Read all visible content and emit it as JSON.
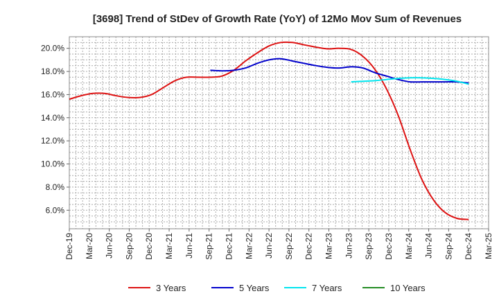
{
  "chart_data": {
    "type": "line",
    "title": "[3698]  Trend of StDev of Growth Rate (YoY) of 12Mo Mov Sum of Revenues",
    "xlabel": "",
    "ylabel": "",
    "x_ticks": [
      "Dec-19",
      "Mar-20",
      "Jun-20",
      "Sep-20",
      "Dec-20",
      "Mar-21",
      "Jun-21",
      "Sep-21",
      "Dec-21",
      "Mar-22",
      "Jun-22",
      "Sep-22",
      "Dec-22",
      "Mar-23",
      "Jun-23",
      "Sep-23",
      "Dec-23",
      "Mar-24",
      "Jun-24",
      "Sep-24",
      "Dec-24",
      "Mar-25"
    ],
    "y_ticks": [
      "6.0%",
      "8.0%",
      "10.0%",
      "12.0%",
      "14.0%",
      "16.0%",
      "18.0%",
      "20.0%"
    ],
    "y_tick_values": [
      6,
      8,
      10,
      12,
      14,
      16,
      18,
      20
    ],
    "ylim": [
      4.4,
      21.0
    ],
    "grid": true,
    "legend_position": "bottom",
    "series": [
      {
        "name": "3 Years",
        "color": "#dd1111",
        "points": [
          [
            0,
            15.6
          ],
          [
            1,
            15.9
          ],
          [
            2,
            16.1
          ],
          [
            3,
            16.1
          ],
          [
            4,
            15.9
          ],
          [
            5,
            15.75
          ],
          [
            6,
            15.75
          ],
          [
            7,
            16.0
          ],
          [
            8,
            16.6
          ],
          [
            9,
            17.2
          ],
          [
            10,
            17.5
          ],
          [
            11,
            17.5
          ],
          [
            12,
            17.5
          ],
          [
            13,
            17.6
          ],
          [
            14,
            18.1
          ],
          [
            15,
            18.9
          ],
          [
            16,
            19.6
          ],
          [
            17,
            20.2
          ],
          [
            18,
            20.5
          ],
          [
            19,
            20.5
          ],
          [
            20,
            20.3
          ],
          [
            21,
            20.1
          ],
          [
            22,
            19.95
          ],
          [
            23,
            20.0
          ],
          [
            24,
            19.9
          ],
          [
            25,
            19.3
          ],
          [
            26,
            18.2
          ],
          [
            27,
            16.5
          ],
          [
            28,
            14.2
          ],
          [
            29,
            11.3
          ],
          [
            30,
            8.7
          ],
          [
            31,
            6.9
          ],
          [
            32,
            5.8
          ],
          [
            33,
            5.3
          ],
          [
            34,
            5.2
          ]
        ]
      },
      {
        "name": "5 Years",
        "color": "#0000cc",
        "points": [
          [
            12,
            18.1
          ],
          [
            13,
            18.05
          ],
          [
            14,
            18.1
          ],
          [
            15,
            18.3
          ],
          [
            16,
            18.7
          ],
          [
            17,
            19.0
          ],
          [
            18,
            19.1
          ],
          [
            19,
            18.9
          ],
          [
            20,
            18.7
          ],
          [
            21,
            18.5
          ],
          [
            22,
            18.35
          ],
          [
            23,
            18.3
          ],
          [
            24,
            18.4
          ],
          [
            25,
            18.3
          ],
          [
            26,
            17.9
          ],
          [
            27,
            17.6
          ],
          [
            28,
            17.3
          ],
          [
            29,
            17.1
          ],
          [
            30,
            17.1
          ],
          [
            31,
            17.1
          ],
          [
            32,
            17.1
          ],
          [
            33,
            17.1
          ],
          [
            34,
            17.0
          ]
        ]
      },
      {
        "name": "7 Years",
        "color": "#00e5ee",
        "points": [
          [
            24,
            17.1
          ],
          [
            25,
            17.15
          ],
          [
            26,
            17.2
          ],
          [
            27,
            17.3
          ],
          [
            28,
            17.4
          ],
          [
            29,
            17.45
          ],
          [
            30,
            17.45
          ],
          [
            31,
            17.4
          ],
          [
            32,
            17.3
          ],
          [
            33,
            17.15
          ],
          [
            34,
            16.9
          ]
        ]
      },
      {
        "name": "10 Years",
        "color": "#228b22",
        "points": []
      }
    ],
    "x_index_span": [
      0,
      63
    ]
  }
}
